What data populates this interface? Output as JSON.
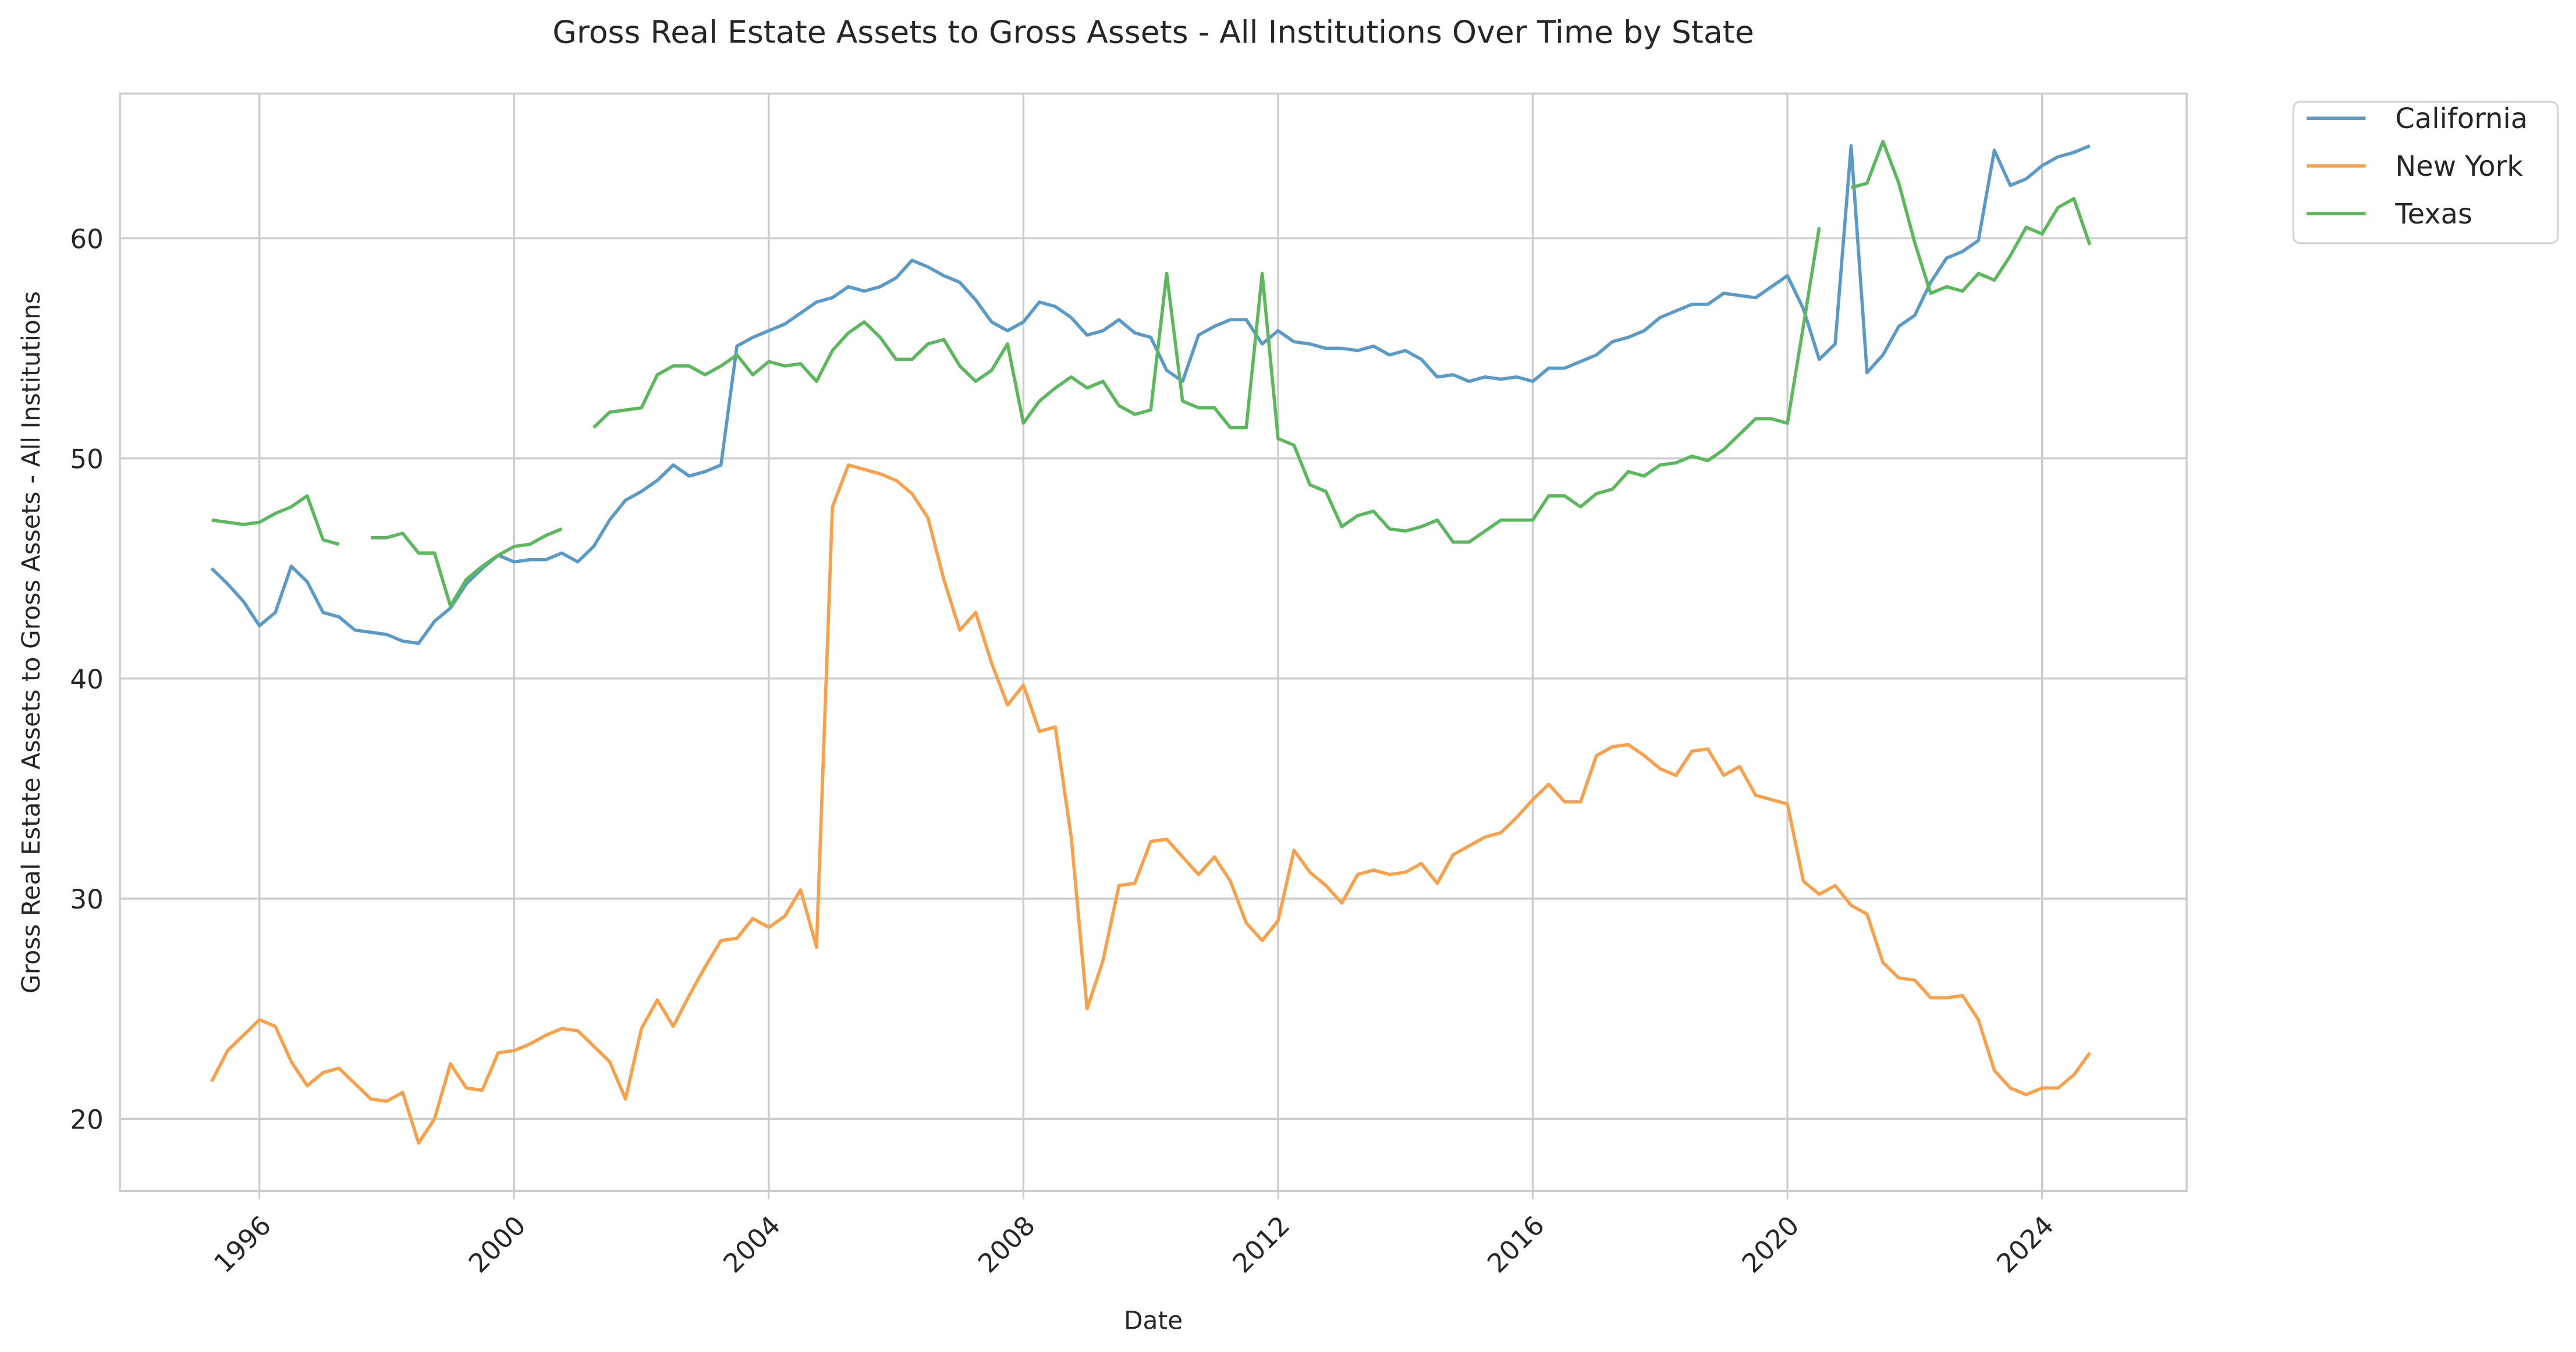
{
  "chart_data": {
    "type": "line",
    "title": "Gross Real Estate Assets to Gross Assets - All Institutions Over Time by State",
    "x_label": "Date",
    "y_label": "Gross Real Estate Assets to Gross Assets - All Institutions",
    "x": [
      1995.25,
      1995.5,
      1995.75,
      1996,
      1996.25,
      1996.5,
      1996.75,
      1997,
      1997.25,
      1997.5,
      1997.75,
      1998,
      1998.25,
      1998.5,
      1998.75,
      1999,
      1999.25,
      1999.5,
      1999.75,
      2000,
      2000.25,
      2000.5,
      2000.75,
      2001,
      2001.25,
      2001.5,
      2001.75,
      2002,
      2002.25,
      2002.5,
      2002.75,
      2003,
      2003.25,
      2003.5,
      2003.75,
      2004,
      2004.25,
      2004.5,
      2004.75,
      2005,
      2005.25,
      2005.5,
      2005.75,
      2006,
      2006.25,
      2006.5,
      2006.75,
      2007,
      2007.25,
      2007.5,
      2007.75,
      2008,
      2008.25,
      2008.5,
      2008.75,
      2009,
      2009.25,
      2009.5,
      2009.75,
      2010,
      2010.25,
      2010.5,
      2010.75,
      2011,
      2011.25,
      2011.5,
      2011.75,
      2012,
      2012.25,
      2012.5,
      2012.75,
      2013,
      2013.25,
      2013.5,
      2013.75,
      2014,
      2014.25,
      2014.5,
      2014.75,
      2015,
      2015.25,
      2015.5,
      2015.75,
      2016,
      2016.25,
      2016.5,
      2016.75,
      2017,
      2017.25,
      2017.5,
      2017.75,
      2018,
      2018.25,
      2018.5,
      2018.75,
      2019,
      2019.25,
      2019.5,
      2019.75,
      2020,
      2020.25,
      2020.5,
      2020.75,
      2021,
      2021.25,
      2021.5,
      2021.75,
      2022,
      2022.25,
      2022.5,
      2022.75,
      2023,
      2023.25,
      2023.5,
      2023.75,
      2024,
      2024.25,
      2024.5,
      2024.75
    ],
    "series": [
      {
        "name": "California",
        "color": "#5a9ac6",
        "values": [
          45.0,
          44.3,
          43.5,
          42.4,
          43.0,
          45.1,
          44.4,
          43.0,
          42.8,
          42.2,
          42.1,
          42.0,
          41.7,
          41.6,
          42.6,
          43.2,
          44.3,
          45.0,
          45.6,
          45.3,
          45.4,
          45.4,
          45.7,
          45.3,
          46.0,
          47.2,
          48.1,
          48.5,
          49.0,
          49.7,
          49.2,
          49.4,
          49.7,
          55.1,
          55.5,
          55.8,
          56.1,
          56.6,
          57.1,
          57.3,
          57.8,
          57.6,
          57.8,
          58.2,
          59.0,
          58.7,
          58.3,
          58.0,
          57.2,
          56.2,
          55.8,
          56.2,
          57.1,
          56.9,
          56.4,
          55.6,
          55.8,
          56.3,
          55.7,
          55.5,
          54.0,
          53.5,
          55.6,
          56.0,
          56.3,
          56.3,
          55.2,
          55.8,
          55.3,
          55.2,
          55.0,
          55.0,
          54.9,
          55.1,
          54.7,
          54.9,
          54.5,
          53.7,
          53.8,
          53.5,
          53.7,
          53.6,
          53.7,
          53.5,
          54.1,
          54.1,
          54.4,
          54.7,
          55.3,
          55.5,
          55.8,
          56.4,
          56.7,
          57.0,
          57.0,
          57.5,
          57.4,
          57.3,
          57.8,
          58.3,
          56.8,
          54.5,
          55.2,
          64.2,
          53.9,
          54.7,
          56.0,
          56.5,
          58.0,
          59.1,
          59.4,
          59.9,
          64.0,
          62.4,
          62.7,
          63.3,
          63.7,
          63.9,
          64.2
        ]
      },
      {
        "name": "New York",
        "color": "#f9a04a",
        "values": [
          21.7,
          23.1,
          23.8,
          24.5,
          24.2,
          22.6,
          21.5,
          22.1,
          22.3,
          21.6,
          20.9,
          20.8,
          21.2,
          18.9,
          20.0,
          22.5,
          21.4,
          21.3,
          23.0,
          23.1,
          23.4,
          23.8,
          24.1,
          24.0,
          23.3,
          22.6,
          20.9,
          24.1,
          25.4,
          24.2,
          25.6,
          26.9,
          28.1,
          28.2,
          29.1,
          28.7,
          29.2,
          30.4,
          27.8,
          47.8,
          49.7,
          49.5,
          49.3,
          49.0,
          48.4,
          47.3,
          44.5,
          42.2,
          43.0,
          40.7,
          38.8,
          39.7,
          37.6,
          37.8,
          32.8,
          25.0,
          27.2,
          30.6,
          30.7,
          32.6,
          32.7,
          31.9,
          31.1,
          31.9,
          30.8,
          28.9,
          28.1,
          29.0,
          32.2,
          31.2,
          30.6,
          29.8,
          31.1,
          31.3,
          31.1,
          31.2,
          31.6,
          30.7,
          32.0,
          32.4,
          32.8,
          33.0,
          33.7,
          34.5,
          35.2,
          34.4,
          34.4,
          36.5,
          36.9,
          37.0,
          36.5,
          35.9,
          35.6,
          36.7,
          36.8,
          35.6,
          36.0,
          34.7,
          34.5,
          34.3,
          30.8,
          30.2,
          30.6,
          29.7,
          29.3,
          27.1,
          26.4,
          26.3,
          25.5,
          25.5,
          25.6,
          24.5,
          22.2,
          21.4,
          21.1,
          21.4,
          21.4,
          22.0,
          23.0
        ]
      },
      {
        "name": "Texas",
        "color": "#5cb85c",
        "values": [
          47.2,
          47.1,
          47.0,
          47.1,
          47.5,
          47.8,
          48.3,
          46.3,
          46.1,
          null,
          46.4,
          46.4,
          46.6,
          45.7,
          45.7,
          43.3,
          44.5,
          45.1,
          45.6,
          46.0,
          46.1,
          46.5,
          46.8,
          null,
          51.4,
          52.1,
          52.2,
          52.3,
          53.8,
          54.2,
          54.2,
          53.8,
          54.2,
          54.7,
          53.8,
          54.4,
          54.2,
          54.3,
          53.5,
          54.9,
          55.7,
          56.2,
          55.5,
          54.5,
          54.5,
          55.2,
          55.4,
          54.2,
          53.5,
          54.0,
          55.2,
          51.6,
          52.6,
          53.2,
          53.7,
          53.2,
          53.5,
          52.4,
          52.0,
          52.2,
          58.4,
          52.6,
          52.3,
          52.3,
          51.4,
          51.4,
          58.4,
          50.9,
          50.6,
          48.8,
          48.5,
          46.9,
          47.4,
          47.6,
          46.8,
          46.7,
          46.9,
          47.2,
          46.2,
          46.2,
          46.7,
          47.2,
          47.2,
          47.2,
          48.3,
          48.3,
          47.8,
          48.4,
          48.6,
          49.4,
          49.2,
          49.7,
          49.8,
          50.1,
          49.9,
          50.4,
          51.1,
          51.8,
          51.8,
          51.6,
          56.0,
          60.5,
          null,
          62.3,
          62.5,
          64.4,
          62.5,
          59.8,
          57.5,
          57.8,
          57.6,
          58.4,
          58.1,
          59.2,
          60.5,
          60.2,
          61.4,
          61.8,
          59.7
        ]
      }
    ],
    "xlim": [
      1993.81,
      2026.27
    ],
    "xticks": [
      1996,
      2000,
      2004,
      2008,
      2012,
      2016,
      2020,
      2024
    ],
    "ylim": [
      16.72,
      66.57
    ],
    "yticks": [
      20,
      30,
      40,
      50,
      60
    ],
    "grid": true,
    "legend": "outside upper right"
  }
}
